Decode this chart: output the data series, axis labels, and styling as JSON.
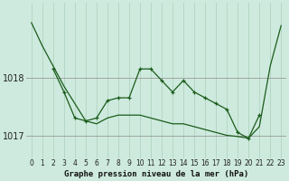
{
  "title": "Graphe pression niveau de la mer (hPa)",
  "background_color": "#ceeade",
  "grid_color_v": "#b0d4c0",
  "grid_color_h": "#999999",
  "line_color": "#1a5c1a",
  "x_labels": [
    "0",
    "1",
    "2",
    "3",
    "4",
    "5",
    "6",
    "7",
    "8",
    "9",
    "10",
    "11",
    "12",
    "13",
    "14",
    "15",
    "16",
    "17",
    "18",
    "19",
    "20",
    "21",
    "22",
    "23"
  ],
  "series1_x": [
    0,
    1,
    2,
    3,
    4,
    5,
    6,
    7,
    8,
    9,
    10,
    11,
    12,
    13,
    14,
    15,
    16,
    17,
    18,
    19,
    20,
    21,
    22,
    23
  ],
  "series1_y": [
    1018.95,
    1018.55,
    1018.2,
    1017.85,
    1017.55,
    1017.25,
    1017.2,
    1017.3,
    1017.35,
    1017.35,
    1017.35,
    1017.3,
    1017.25,
    1017.2,
    1017.2,
    1017.15,
    1017.1,
    1017.05,
    1017.0,
    1016.98,
    1016.95,
    1017.15,
    1018.2,
    1018.9
  ],
  "series2_x": [
    2,
    3,
    4,
    5,
    6,
    7,
    8,
    9,
    10,
    11,
    12,
    13,
    14,
    15,
    16,
    17,
    18,
    19,
    20,
    21
  ],
  "series2_y": [
    1018.15,
    1017.75,
    1017.3,
    1017.25,
    1017.3,
    1017.6,
    1017.65,
    1017.65,
    1018.15,
    1018.15,
    1017.95,
    1017.75,
    1017.95,
    1017.75,
    1017.65,
    1017.55,
    1017.45,
    1017.05,
    1016.95,
    1017.35
  ],
  "ylim": [
    1016.6,
    1019.3
  ],
  "yticks": [
    1017.0,
    1018.0
  ],
  "ylabel_fontsize": 7,
  "xlabel_fontsize": 5.5,
  "title_fontsize": 6.5
}
